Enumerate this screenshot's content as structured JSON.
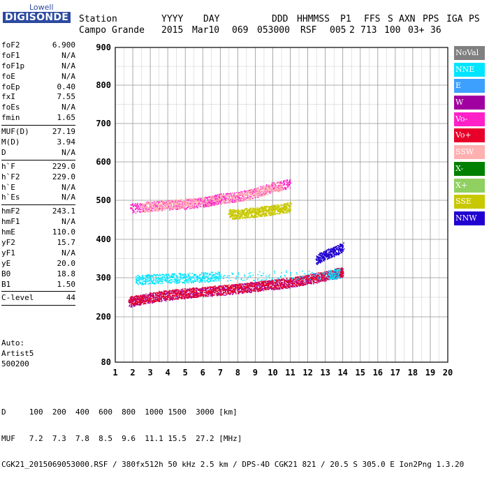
{
  "logo": {
    "line1": "Lowell",
    "line2": "DIGISONDE"
  },
  "header": {
    "labels": [
      "Station",
      "YYYY",
      "DAY",
      "DDD",
      "HHMMSS",
      "P1",
      "FFS",
      "S",
      "AXN",
      "PPS",
      "IGA",
      "PS"
    ],
    "values": [
      "Campo Grande",
      "2015",
      "Mar10",
      "069",
      "053000",
      "RSF",
      "005",
      "2",
      "713",
      "100",
      "03+",
      "36"
    ]
  },
  "params": {
    "group1": [
      {
        "name": "foF2",
        "value": "6.900"
      },
      {
        "name": "foF1",
        "value": "N/A"
      },
      {
        "name": "foF1p",
        "value": "N/A"
      },
      {
        "name": "foE",
        "value": "N/A"
      },
      {
        "name": "foEp",
        "value": "0.40"
      },
      {
        "name": "fxI",
        "value": "7.55"
      },
      {
        "name": "foEs",
        "value": "N/A"
      },
      {
        "name": "fmin",
        "value": "1.65"
      }
    ],
    "group2": [
      {
        "name": "MUF(D)",
        "value": "27.19"
      },
      {
        "name": "M(D)",
        "value": "3.94"
      },
      {
        "name": "D",
        "value": "N/A"
      }
    ],
    "group3": [
      {
        "name": "h`F",
        "value": "229.0"
      },
      {
        "name": "h`F2",
        "value": "229.0"
      },
      {
        "name": "h`E",
        "value": "N/A"
      },
      {
        "name": "h`Es",
        "value": "N/A"
      }
    ],
    "group4": [
      {
        "name": "hmF2",
        "value": "243.1"
      },
      {
        "name": "hmF1",
        "value": "N/A"
      },
      {
        "name": "hmE",
        "value": "110.0"
      },
      {
        "name": "yF2",
        "value": "15.7"
      },
      {
        "name": "yF1",
        "value": "N/A"
      },
      {
        "name": "yE",
        "value": "20.0"
      },
      {
        "name": "B0",
        "value": "18.8"
      },
      {
        "name": "B1",
        "value": "1.50"
      }
    ],
    "group5": [
      {
        "name": "C-level",
        "value": "44"
      }
    ]
  },
  "auto": {
    "line1": "Auto:",
    "line2": "Artist5",
    "line3": "500200"
  },
  "legend": [
    {
      "label": "NoVal",
      "color": "#808080"
    },
    {
      "label": "NNE",
      "color": "#00e5ff"
    },
    {
      "label": "E",
      "color": "#3da0ff"
    },
    {
      "label": "W",
      "color": "#a000a0"
    },
    {
      "label": "Vo-",
      "color": "#ff20c8"
    },
    {
      "label": "Vo+",
      "color": "#e8002a"
    },
    {
      "label": "SSW",
      "color": "#ffb0b0"
    },
    {
      "label": "X-",
      "color": "#008000"
    },
    {
      "label": "X+",
      "color": "#90d060"
    },
    {
      "label": "SSE",
      "color": "#c8c800"
    },
    {
      "label": "NNW",
      "color": "#2000d0"
    }
  ],
  "bottom": {
    "d_label": "D",
    "d_values": [
      "100",
      "200",
      "400",
      "600",
      "800",
      "1000",
      "1500",
      "3000"
    ],
    "d_unit": "[km]",
    "muf_label": "MUF",
    "muf_values": [
      "7.2",
      "7.3",
      "7.8",
      "8.5",
      "9.6",
      "11.1",
      "15.5",
      "27.2"
    ],
    "muf_unit": "[MHz]",
    "footer": "CGK21_2015069053000.RSF / 380fx512h 50 kHz 2.5 km / DPS-4D CGK21 821 / 20.5 S 305.0 E Ion2Png 1.3.20"
  },
  "chart_data": {
    "type": "scatter",
    "x_ticks": [
      1,
      2,
      3,
      4,
      5,
      6,
      7,
      8,
      9,
      10,
      11,
      12,
      13,
      14,
      15,
      16,
      17,
      18,
      19,
      20
    ],
    "y_ticks": [
      80,
      200,
      300,
      400,
      500,
      600,
      700,
      800,
      900
    ],
    "xlim": [
      1,
      20
    ],
    "y_scale": "piecewise",
    "grid": true,
    "series": [
      {
        "name": "W",
        "color": "#a000a0",
        "x": [
          1.8,
          2.5,
          3.5,
          4.5,
          5.5,
          6.5,
          7.5,
          8.5,
          9.5,
          10.5,
          11.5,
          12.5,
          13.5,
          14.0
        ],
        "y": [
          238,
          245,
          252,
          258,
          262,
          266,
          270,
          275,
          280,
          285,
          292,
          300,
          310,
          315
        ]
      },
      {
        "name": "Vo+",
        "color": "#e8002a",
        "x": [
          1.8,
          2.5,
          3.5,
          4.5,
          5.5,
          6.5,
          7.5,
          8.5,
          9.5,
          10.5,
          11.5,
          12.5,
          13.5,
          14.0
        ],
        "y": [
          240,
          246,
          254,
          259,
          263,
          267,
          271,
          276,
          281,
          286,
          293,
          301,
          311,
          316
        ]
      },
      {
        "name": "NNE",
        "color": "#00e5ff",
        "x": [
          2.2,
          3.0,
          4.0,
          5.0,
          6.0,
          7.0,
          13.2,
          13.8
        ],
        "y": [
          295,
          297,
          299,
          300,
          302,
          304,
          308,
          312
        ]
      },
      {
        "name": "NNW",
        "color": "#2000d0",
        "x": [
          12.5,
          13.0,
          13.5,
          14.0
        ],
        "y": [
          348,
          360,
          370,
          380
        ]
      },
      {
        "name": "SSE",
        "color": "#c8c800",
        "x": [
          7.5,
          8.0,
          8.5,
          9.0,
          9.5,
          10.0,
          10.5,
          11.0
        ],
        "y": [
          465,
          466,
          468,
          470,
          473,
          476,
          479,
          483
        ]
      },
      {
        "name": "Vo-",
        "color": "#ff20c8",
        "x": [
          1.9,
          3.0,
          4.0,
          5.0,
          6.0,
          6.5,
          7.0,
          8.0,
          9.0,
          10.0,
          11.0
        ],
        "y": [
          480,
          485,
          488,
          490,
          495,
          500,
          505,
          510,
          520,
          535,
          545
        ]
      },
      {
        "name": "SSW",
        "color": "#ffb0b0",
        "x": [
          2.5,
          3.5,
          4.5,
          5.5,
          7.0,
          8.5,
          9.5,
          10.5
        ],
        "y": [
          482,
          487,
          491,
          494,
          503,
          513,
          527,
          538
        ]
      }
    ]
  }
}
